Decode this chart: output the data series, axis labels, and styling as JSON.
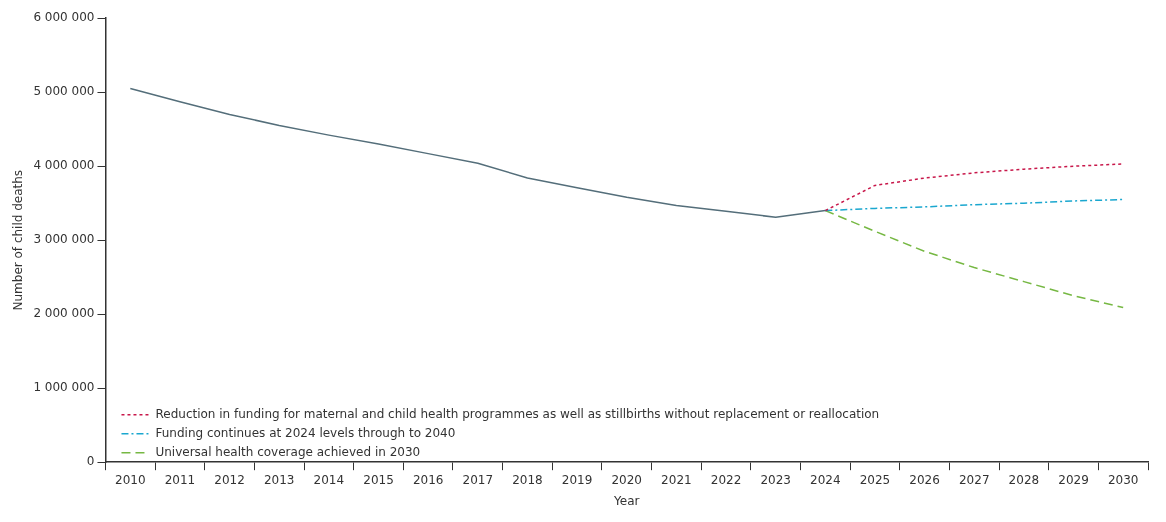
{
  "chart_data": {
    "type": "line",
    "xlabel": "Year",
    "ylabel": "Number of child deaths",
    "categories": [
      "2010",
      "2011",
      "2012",
      "2013",
      "2014",
      "2015",
      "2016",
      "2017",
      "2018",
      "2019",
      "2020",
      "2021",
      "2022",
      "2023",
      "2024",
      "2025",
      "2026",
      "2027",
      "2028",
      "2029",
      "2030"
    ],
    "series": [
      {
        "color": "#546e7a",
        "line_style": "solid",
        "values": [
          5050000,
          4870000,
          4700000,
          4550000,
          4420000,
          4300000,
          4170000,
          4040000,
          3840000,
          3710000,
          3580000,
          3470000,
          3390000,
          3310000,
          3400000,
          null,
          null,
          null,
          null,
          null,
          null
        ]
      },
      {
        "name": "Reduction in funding for maternal and child health programmes as well as stillbirths without replacement or reallocation",
        "color": "#c8174a",
        "line_style": "dotted",
        "values": [
          null,
          null,
          null,
          null,
          null,
          null,
          null,
          null,
          null,
          null,
          null,
          null,
          null,
          null,
          3400000,
          3740000,
          3840000,
          3910000,
          3960000,
          4000000,
          4030000
        ]
      },
      {
        "name": "Funding continues at 2024 levels through to 2040",
        "color": "#1aa7cf",
        "line_style": "dashdot",
        "values": [
          null,
          null,
          null,
          null,
          null,
          null,
          null,
          null,
          null,
          null,
          null,
          null,
          null,
          null,
          3400000,
          3430000,
          3450000,
          3480000,
          3500000,
          3530000,
          3550000
        ]
      },
      {
        "name": "Universal health coverage achieved in 2030",
        "color": "#76b843",
        "line_style": "dashed",
        "values": [
          null,
          null,
          null,
          null,
          null,
          null,
          null,
          null,
          null,
          null,
          null,
          null,
          null,
          null,
          3400000,
          3120000,
          2850000,
          2630000,
          2440000,
          2250000,
          2090000
        ]
      }
    ],
    "ylim": [
      0,
      6000000
    ],
    "yticks": [
      0,
      {
        "value": 1000000,
        "label": "1 000 000"
      },
      {
        "value": 2000000,
        "label": "2 000 000"
      },
      {
        "value": 3000000,
        "label": "3 000 000"
      },
      {
        "value": 4000000,
        "label": "4 000 000"
      },
      {
        "value": 5000000,
        "label": "5 000 000"
      },
      {
        "value": 6000000,
        "label": "6 000 000"
      }
    ],
    "grid": false,
    "legend": "bottom left",
    "marker": "none"
  }
}
